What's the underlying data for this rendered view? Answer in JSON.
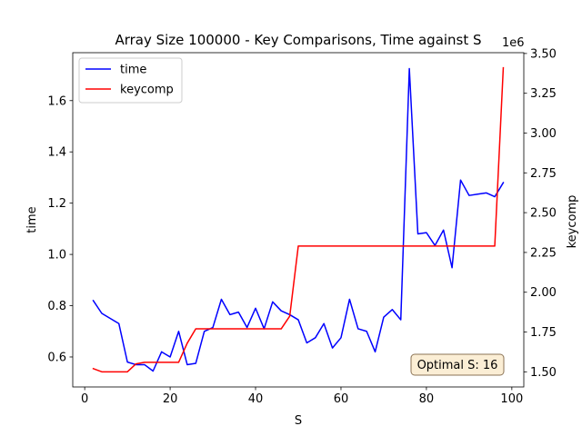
{
  "chart_data": {
    "type": "line",
    "title": "Array Size 100000 - Key Comparisons, Time against S",
    "xlabel": "S",
    "ylabel_left": "time",
    "ylabel_right": "keycomp",
    "right_axis_offset_label": "1e6",
    "xlim": [
      -2.8,
      102.8
    ],
    "ylim_left": [
      0.483,
      1.787
    ],
    "ylim_right": [
      1.405,
      3.505
    ],
    "xticks": [
      0,
      20,
      40,
      60,
      80,
      100
    ],
    "yticks_left": [
      0.6,
      0.8,
      1.0,
      1.2,
      1.4,
      1.6
    ],
    "yticks_left_labels": [
      "0.6",
      "0.8",
      "1.0",
      "1.2",
      "1.4",
      "1.6"
    ],
    "yticks_right": [
      1.5,
      1.75,
      2.0,
      2.25,
      2.5,
      2.75,
      3.0,
      3.25,
      3.5
    ],
    "yticks_right_labels": [
      "1.50",
      "1.75",
      "2.00",
      "2.25",
      "2.50",
      "2.75",
      "3.00",
      "3.25",
      "3.50"
    ],
    "grid": false,
    "legend_position": "top-left",
    "series": [
      {
        "name": "time",
        "axis": "left",
        "color": "#0000ff",
        "x": [
          2,
          4,
          6,
          8,
          10,
          12,
          14,
          16,
          18,
          20,
          22,
          24,
          26,
          28,
          30,
          32,
          34,
          36,
          38,
          40,
          42,
          44,
          46,
          48,
          50,
          52,
          54,
          56,
          58,
          60,
          62,
          64,
          66,
          68,
          70,
          72,
          74,
          76,
          78,
          80,
          82,
          84,
          86,
          88,
          90,
          92,
          94,
          96,
          98
        ],
        "y": [
          0.82,
          0.77,
          0.75,
          0.73,
          0.58,
          0.57,
          0.57,
          0.545,
          0.62,
          0.6,
          0.7,
          0.57,
          0.575,
          0.7,
          0.715,
          0.825,
          0.765,
          0.775,
          0.715,
          0.79,
          0.71,
          0.815,
          0.78,
          0.765,
          0.745,
          0.655,
          0.675,
          0.73,
          0.635,
          0.675,
          0.825,
          0.71,
          0.7,
          0.62,
          0.755,
          0.785,
          0.745,
          1.725,
          1.08,
          1.085,
          1.035,
          1.095,
          0.948,
          1.29,
          1.23,
          1.235,
          1.24,
          1.225,
          1.28
        ]
      },
      {
        "name": "keycomp",
        "axis": "right",
        "color": "#ff0000",
        "x": [
          2,
          4,
          6,
          8,
          10,
          12,
          14,
          16,
          18,
          20,
          22,
          24,
          26,
          28,
          30,
          32,
          34,
          36,
          38,
          40,
          42,
          44,
          46,
          48,
          50,
          52,
          54,
          56,
          58,
          60,
          62,
          64,
          66,
          68,
          70,
          72,
          74,
          76,
          78,
          80,
          82,
          84,
          86,
          88,
          90,
          92,
          94,
          96,
          98
        ],
        "y": [
          1.52,
          1.5,
          1.5,
          1.5,
          1.5,
          1.55,
          1.56,
          1.56,
          1.56,
          1.56,
          1.56,
          1.68,
          1.77,
          1.77,
          1.77,
          1.77,
          1.77,
          1.77,
          1.77,
          1.77,
          1.77,
          1.77,
          1.77,
          1.85,
          2.29,
          2.29,
          2.29,
          2.29,
          2.29,
          2.29,
          2.29,
          2.29,
          2.29,
          2.29,
          2.29,
          2.29,
          2.29,
          2.29,
          2.29,
          2.29,
          2.29,
          2.29,
          2.29,
          2.29,
          2.29,
          2.29,
          2.29,
          2.29,
          3.41
        ]
      }
    ],
    "annotations": [
      {
        "text": "Optimal S: 16",
        "position": "bottom-right",
        "background": "#fbeed5",
        "border": "#8b7355"
      }
    ]
  }
}
